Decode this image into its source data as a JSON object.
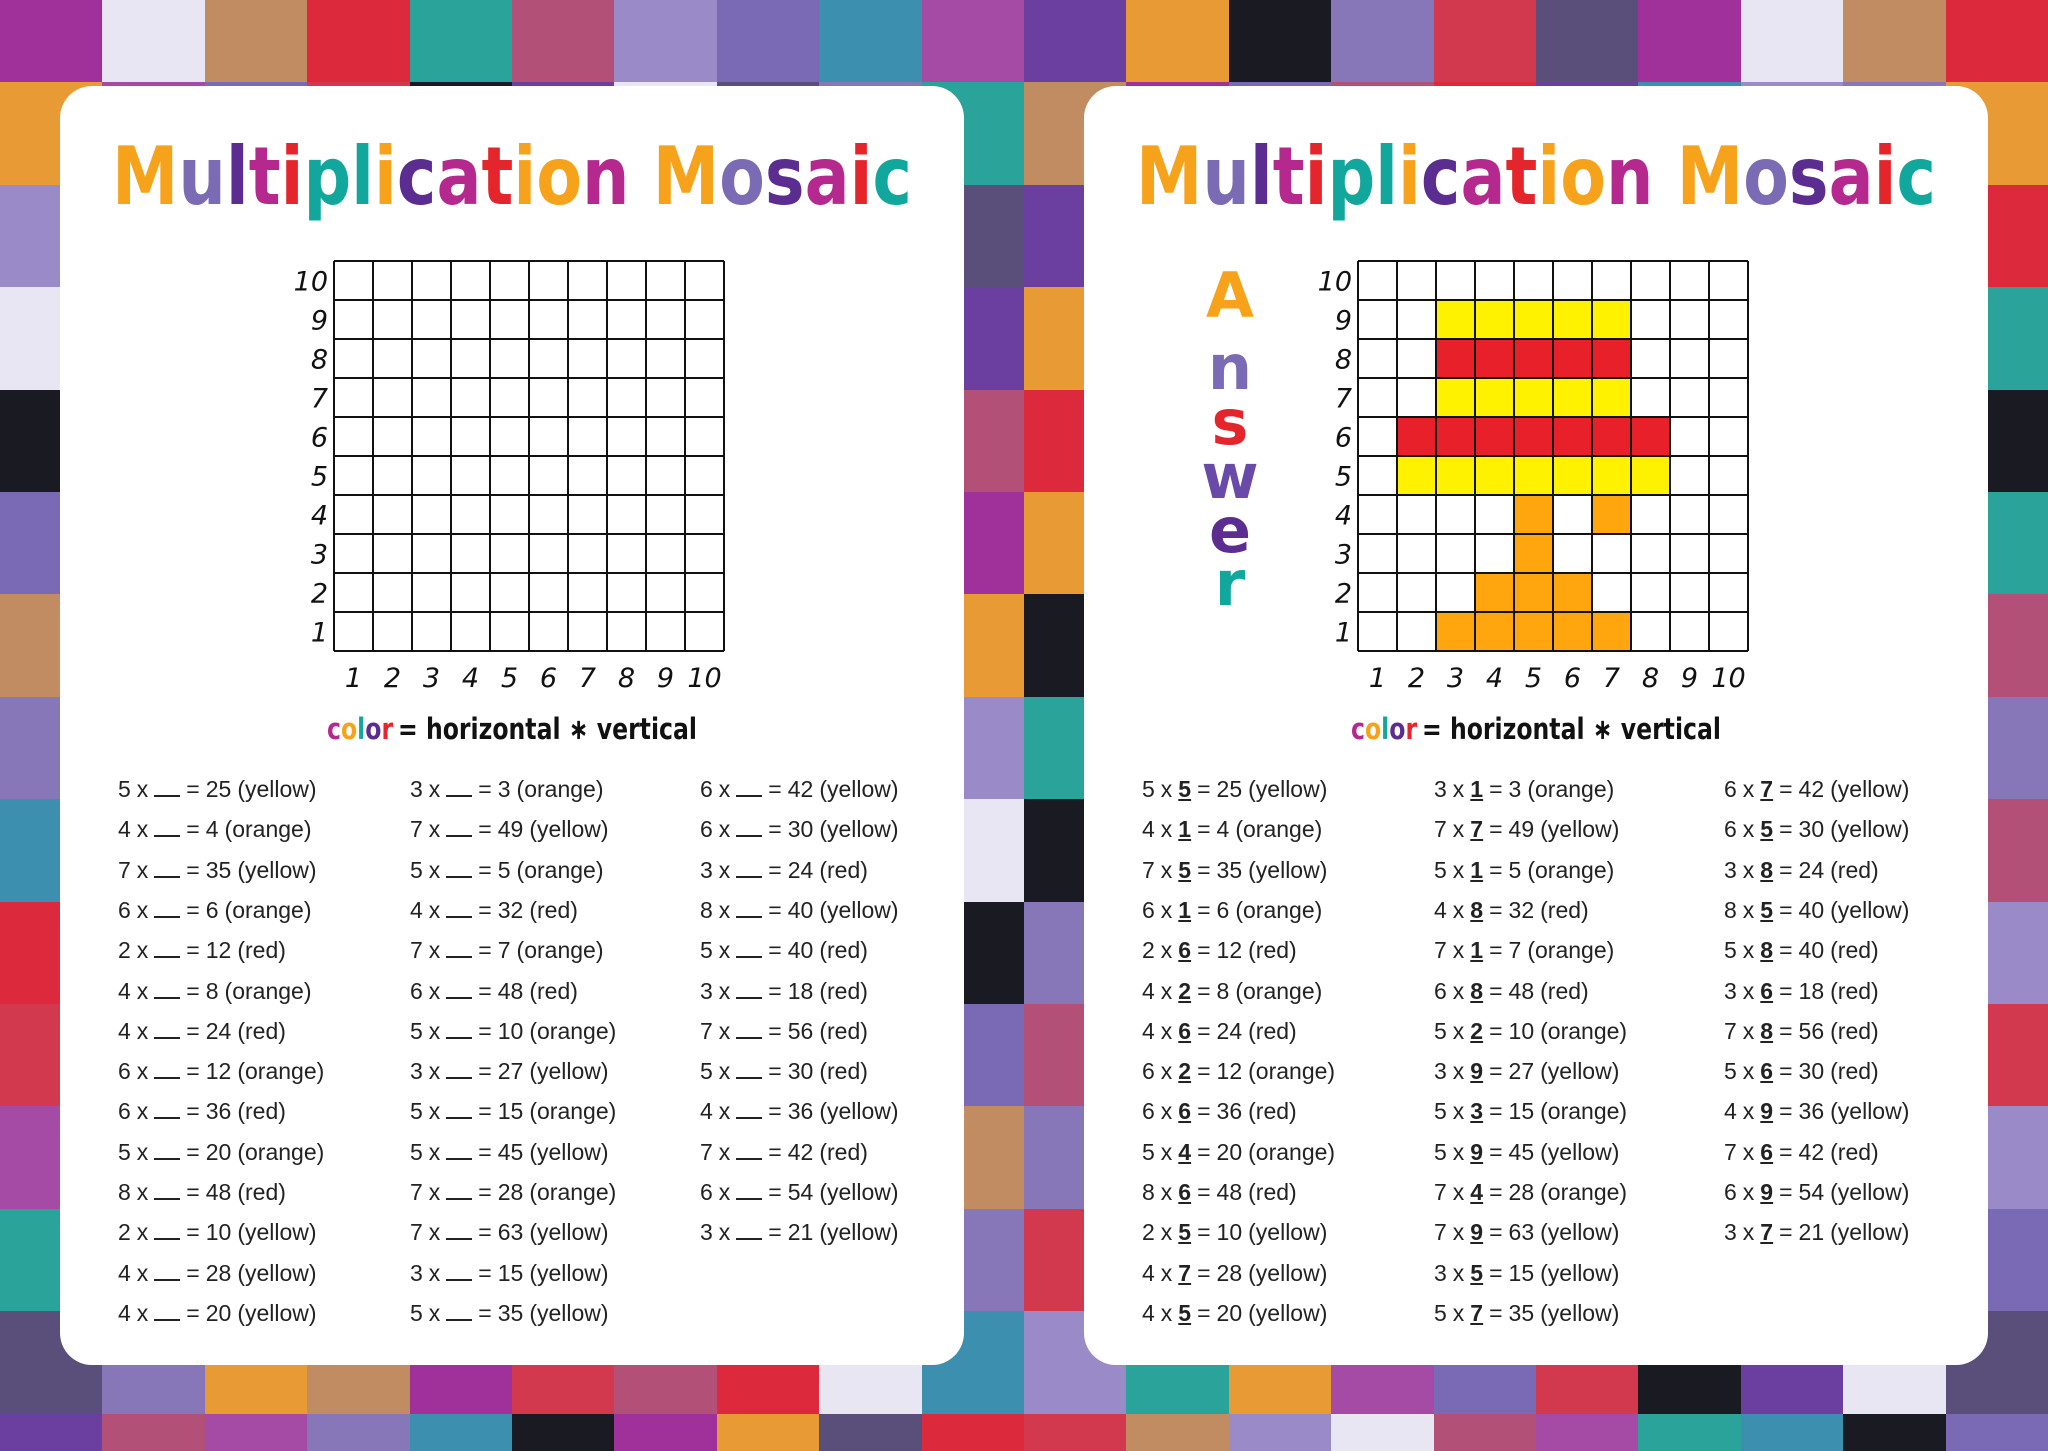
{
  "title": "Multiplication Mosaic",
  "title_colors": [
    "#f7a21b",
    "#7b6bb5",
    "#5b2d90",
    "#b5288e",
    "#e4252c",
    "#12a79d",
    "#12a79d",
    "#f7a21b",
    "#5b2d90",
    "#b5288e",
    "#e4252c",
    "#f7a21b",
    "#f7a21b",
    "#b5288e",
    "#f7a21b",
    "#7b6bb5",
    "#5b2d90",
    "#b5288e",
    "#e4252c",
    "#12a79d"
  ],
  "axis": [
    1,
    2,
    3,
    4,
    5,
    6,
    7,
    8,
    9,
    10
  ],
  "legend": {
    "word": "color",
    "word_colors": [
      "#b5288e",
      "#f7a21b",
      "#12a79d",
      "#5b2d90",
      "#e4252c"
    ],
    "formula": "= horizontal ∗ vertical"
  },
  "answer_label": "Answer",
  "answer_colors": [
    "#f7a21b",
    "#7b6bb5",
    "#e4252c",
    "#6a4aa8",
    "#5b2d90",
    "#12a79d"
  ],
  "symbols": {
    "times": "x",
    "equals": "=",
    "open": "(",
    "close": ")"
  },
  "palette": {
    "yellow": "#fff200",
    "orange": "#ffa50d",
    "red": "#e8202a"
  },
  "problems": [
    [
      {
        "a": 5,
        "b": 5,
        "p": 25,
        "c": "yellow"
      },
      {
        "a": 4,
        "b": 1,
        "p": 4,
        "c": "orange"
      },
      {
        "a": 7,
        "b": 5,
        "p": 35,
        "c": "yellow"
      },
      {
        "a": 6,
        "b": 1,
        "p": 6,
        "c": "orange"
      },
      {
        "a": 2,
        "b": 6,
        "p": 12,
        "c": "red"
      },
      {
        "a": 4,
        "b": 2,
        "p": 8,
        "c": "orange"
      },
      {
        "a": 4,
        "b": 6,
        "p": 24,
        "c": "red"
      },
      {
        "a": 6,
        "b": 2,
        "p": 12,
        "c": "orange"
      },
      {
        "a": 6,
        "b": 6,
        "p": 36,
        "c": "red"
      },
      {
        "a": 5,
        "b": 4,
        "p": 20,
        "c": "orange"
      },
      {
        "a": 8,
        "b": 6,
        "p": 48,
        "c": "red"
      },
      {
        "a": 2,
        "b": 5,
        "p": 10,
        "c": "yellow"
      },
      {
        "a": 4,
        "b": 7,
        "p": 28,
        "c": "yellow"
      },
      {
        "a": 4,
        "b": 5,
        "p": 20,
        "c": "yellow"
      }
    ],
    [
      {
        "a": 3,
        "b": 1,
        "p": 3,
        "c": "orange"
      },
      {
        "a": 7,
        "b": 7,
        "p": 49,
        "c": "yellow"
      },
      {
        "a": 5,
        "b": 1,
        "p": 5,
        "c": "orange"
      },
      {
        "a": 4,
        "b": 8,
        "p": 32,
        "c": "red"
      },
      {
        "a": 7,
        "b": 1,
        "p": 7,
        "c": "orange"
      },
      {
        "a": 6,
        "b": 8,
        "p": 48,
        "c": "red"
      },
      {
        "a": 5,
        "b": 2,
        "p": 10,
        "c": "orange"
      },
      {
        "a": 3,
        "b": 9,
        "p": 27,
        "c": "yellow"
      },
      {
        "a": 5,
        "b": 3,
        "p": 15,
        "c": "orange"
      },
      {
        "a": 5,
        "b": 9,
        "p": 45,
        "c": "yellow"
      },
      {
        "a": 7,
        "b": 4,
        "p": 28,
        "c": "orange"
      },
      {
        "a": 7,
        "b": 9,
        "p": 63,
        "c": "yellow"
      },
      {
        "a": 3,
        "b": 5,
        "p": 15,
        "c": "yellow"
      },
      {
        "a": 5,
        "b": 7,
        "p": 35,
        "c": "yellow"
      }
    ],
    [
      {
        "a": 6,
        "b": 7,
        "p": 42,
        "c": "yellow"
      },
      {
        "a": 6,
        "b": 5,
        "p": 30,
        "c": "yellow"
      },
      {
        "a": 3,
        "b": 8,
        "p": 24,
        "c": "red"
      },
      {
        "a": 8,
        "b": 5,
        "p": 40,
        "c": "yellow"
      },
      {
        "a": 5,
        "b": 8,
        "p": 40,
        "c": "red"
      },
      {
        "a": 3,
        "b": 6,
        "p": 18,
        "c": "red"
      },
      {
        "a": 7,
        "b": 8,
        "p": 56,
        "c": "red"
      },
      {
        "a": 5,
        "b": 6,
        "p": 30,
        "c": "red"
      },
      {
        "a": 4,
        "b": 9,
        "p": 36,
        "c": "yellow"
      },
      {
        "a": 7,
        "b": 6,
        "p": 42,
        "c": "red"
      },
      {
        "a": 6,
        "b": 9,
        "p": 54,
        "c": "yellow"
      },
      {
        "a": 3,
        "b": 7,
        "p": 21,
        "c": "yellow"
      }
    ]
  ]
}
